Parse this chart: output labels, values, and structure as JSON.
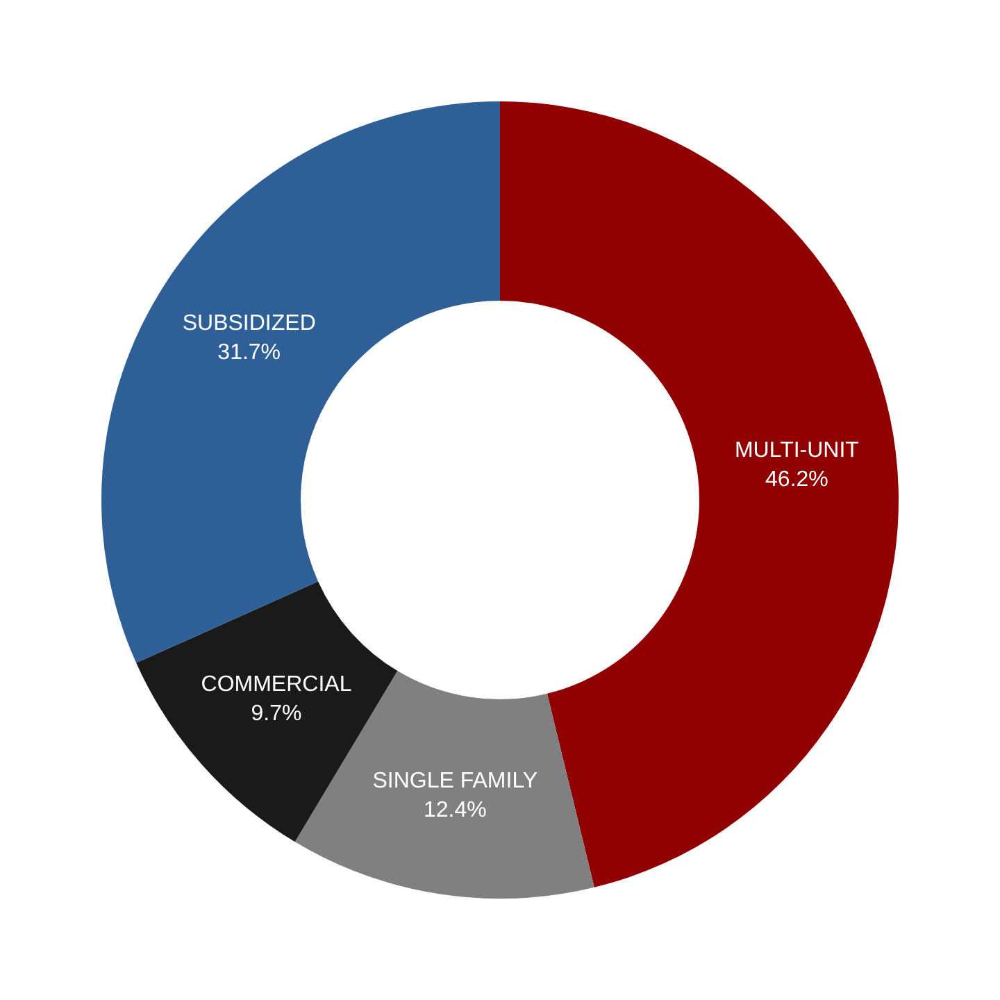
{
  "chart_data": {
    "type": "donut",
    "categories": [
      "MULTI-UNIT",
      "SINGLE FAMILY",
      "COMMERCIAL",
      "SUBSIDIZED"
    ],
    "values": [
      46.2,
      12.4,
      9.7,
      31.7
    ],
    "colors": [
      "#900000",
      "#808080",
      "#1a1a1a",
      "#2e5f96"
    ],
    "value_labels": [
      "46.2%",
      "12.4%",
      "9.7%",
      "31.7%"
    ],
    "legend": false
  }
}
